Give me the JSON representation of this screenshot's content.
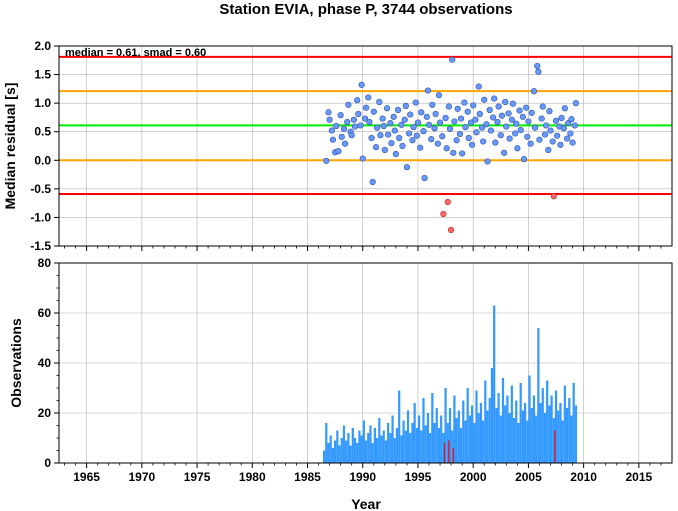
{
  "chart_data": [
    {
      "id": "residuals",
      "type": "scatter",
      "title": "Station EVIA, phase P, 3744 observations",
      "ylabel": "Median residual [s]",
      "annotation": "median = 0.61, smad = 0.60",
      "xlim": [
        1962.5,
        2018.0
      ],
      "ylim": [
        -1.5,
        2.0
      ],
      "y_ticks": [
        "2.0",
        "1.5",
        "1.0",
        "0.5",
        "0.0",
        "-0.5",
        "-1.0",
        "-1.5"
      ],
      "y_tick_values": [
        2.0,
        1.5,
        1.0,
        0.5,
        0.0,
        -0.5,
        -1.0,
        -1.5
      ],
      "grid": true,
      "reference_lines": [
        {
          "y": 1.81,
          "color": "#ff0000"
        },
        {
          "y": 1.21,
          "color": "#ffa500"
        },
        {
          "y": 0.61,
          "color": "#00ee00"
        },
        {
          "y": 0.0,
          "color": "#ffa500"
        },
        {
          "y": -0.59,
          "color": "#ff0000"
        }
      ],
      "colors": {
        "normal": "#6699ff",
        "outlier": "#ff6666"
      },
      "points": [
        [
          1986.7,
          -0.01
        ],
        [
          1986.9,
          0.84
        ],
        [
          1987.0,
          0.71
        ],
        [
          1987.2,
          0.52
        ],
        [
          1987.3,
          0.36
        ],
        [
          1987.5,
          0.14
        ],
        [
          1987.6,
          0.6
        ],
        [
          1987.8,
          0.16
        ],
        [
          1988.0,
          0.79
        ],
        [
          1988.1,
          0.41
        ],
        [
          1988.3,
          0.55
        ],
        [
          1988.4,
          0.29
        ],
        [
          1988.6,
          0.67
        ],
        [
          1988.7,
          0.97
        ],
        [
          1988.9,
          0.5
        ],
        [
          1989.0,
          0.44
        ],
        [
          1989.2,
          0.71
        ],
        [
          1989.3,
          0.59
        ],
        [
          1989.5,
          1.05
        ],
        [
          1989.6,
          0.81
        ],
        [
          1989.8,
          0.61
        ],
        [
          1989.9,
          1.32
        ],
        [
          1990.0,
          0.03
        ],
        [
          1990.2,
          0.73
        ],
        [
          1990.3,
          0.92
        ],
        [
          1990.5,
          1.1
        ],
        [
          1990.6,
          0.67
        ],
        [
          1990.8,
          0.39
        ],
        [
          1990.9,
          -0.38
        ],
        [
          1991.0,
          0.85
        ],
        [
          1991.2,
          0.23
        ],
        [
          1991.3,
          0.57
        ],
        [
          1991.5,
          1.02
        ],
        [
          1991.6,
          0.44
        ],
        [
          1991.8,
          0.73
        ],
        [
          1991.9,
          0.6
        ],
        [
          1992.0,
          0.18
        ],
        [
          1992.2,
          0.91
        ],
        [
          1992.3,
          0.45
        ],
        [
          1992.5,
          0.65
        ],
        [
          1992.6,
          0.3
        ],
        [
          1992.8,
          0.76
        ],
        [
          1992.9,
          0.52
        ],
        [
          1993.0,
          0.11
        ],
        [
          1993.2,
          0.88
        ],
        [
          1993.3,
          0.39
        ],
        [
          1993.5,
          0.62
        ],
        [
          1993.6,
          0.25
        ],
        [
          1993.8,
          0.71
        ],
        [
          1993.9,
          0.95
        ],
        [
          1994.0,
          -0.12
        ],
        [
          1994.2,
          0.47
        ],
        [
          1994.3,
          0.8
        ],
        [
          1994.5,
          0.35
        ],
        [
          1994.6,
          0.58
        ],
        [
          1994.8,
          1.01
        ],
        [
          1994.9,
          0.43
        ],
        [
          1995.0,
          0.66
        ],
        [
          1995.2,
          0.22
        ],
        [
          1995.3,
          0.84
        ],
        [
          1995.5,
          0.51
        ],
        [
          1995.6,
          -0.31
        ],
        [
          1995.8,
          0.76
        ],
        [
          1995.9,
          1.22
        ],
        [
          1996.0,
          0.62
        ],
        [
          1996.2,
          0.37
        ],
        [
          1996.3,
          0.97
        ],
        [
          1996.5,
          0.56
        ],
        [
          1996.6,
          0.81
        ],
        [
          1996.8,
          0.29
        ],
        [
          1996.9,
          1.14
        ],
        [
          1997.0,
          0.66
        ],
        [
          1997.2,
          0.42
        ],
        [
          1997.3,
          -0.94
        ],
        [
          1997.5,
          0.74
        ],
        [
          1997.6,
          0.21
        ],
        [
          1997.7,
          -0.73
        ],
        [
          1997.8,
          0.94
        ],
        [
          1997.9,
          0.55
        ],
        [
          1998.0,
          -1.22
        ],
        [
          1998.1,
          1.76
        ],
        [
          1998.2,
          0.13
        ],
        [
          1998.3,
          0.68
        ],
        [
          1998.5,
          0.35
        ],
        [
          1998.6,
          0.9
        ],
        [
          1998.8,
          0.46
        ],
        [
          1998.9,
          0.73
        ],
        [
          1999.0,
          0.12
        ],
        [
          1999.2,
          1.01
        ],
        [
          1999.3,
          0.58
        ],
        [
          1999.5,
          0.85
        ],
        [
          1999.6,
          0.39
        ],
        [
          1999.8,
          0.66
        ],
        [
          1999.9,
          0.27
        ],
        [
          2000.0,
          0.96
        ],
        [
          2000.2,
          0.71
        ],
        [
          2000.3,
          0.49
        ],
        [
          2000.5,
          1.29
        ],
        [
          2000.6,
          0.81
        ],
        [
          2000.8,
          0.57
        ],
        [
          2000.9,
          0.33
        ],
        [
          2001.0,
          1.06
        ],
        [
          2001.2,
          0.63
        ],
        [
          2001.3,
          -0.02
        ],
        [
          2001.5,
          0.88
        ],
        [
          2001.6,
          0.52
        ],
        [
          2001.8,
          0.75
        ],
        [
          2001.9,
          1.08
        ],
        [
          2002.0,
          0.31
        ],
        [
          2002.2,
          0.67
        ],
        [
          2002.3,
          0.94
        ],
        [
          2002.5,
          0.44
        ],
        [
          2002.6,
          0.78
        ],
        [
          2002.8,
          0.13
        ],
        [
          2002.9,
          1.02
        ],
        [
          2003.0,
          0.59
        ],
        [
          2003.2,
          0.82
        ],
        [
          2003.3,
          0.38
        ],
        [
          2003.5,
          0.71
        ],
        [
          2003.6,
          0.99
        ],
        [
          2003.8,
          0.47
        ],
        [
          2003.9,
          0.64
        ],
        [
          2004.0,
          0.21
        ],
        [
          2004.2,
          0.87
        ],
        [
          2004.3,
          0.53
        ],
        [
          2004.5,
          0.76
        ],
        [
          2004.6,
          0.02
        ],
        [
          2004.8,
          0.92
        ],
        [
          2004.9,
          0.41
        ],
        [
          2005.0,
          0.68
        ],
        [
          2005.2,
          0.29
        ],
        [
          2005.3,
          0.83
        ],
        [
          2005.5,
          1.21
        ],
        [
          2005.6,
          0.57
        ],
        [
          2005.8,
          1.65
        ],
        [
          2005.9,
          1.55
        ],
        [
          2006.0,
          0.36
        ],
        [
          2006.2,
          0.73
        ],
        [
          2006.3,
          0.94
        ],
        [
          2006.5,
          0.45
        ],
        [
          2006.6,
          0.61
        ],
        [
          2006.8,
          0.18
        ],
        [
          2006.9,
          0.86
        ],
        [
          2007.0,
          0.52
        ],
        [
          2007.2,
          0.33
        ],
        [
          2007.3,
          -0.63
        ],
        [
          2007.5,
          0.69
        ],
        [
          2007.6,
          0.43
        ],
        [
          2007.8,
          0.59
        ],
        [
          2007.9,
          0.27
        ],
        [
          2008.0,
          0.74
        ],
        [
          2008.2,
          0.56
        ],
        [
          2008.3,
          0.91
        ],
        [
          2008.5,
          0.38
        ],
        [
          2008.6,
          0.65
        ],
        [
          2008.8,
          0.47
        ],
        [
          2008.9,
          0.72
        ],
        [
          2009.0,
          0.31
        ],
        [
          2009.2,
          0.61
        ],
        [
          2009.3,
          1.0
        ]
      ]
    },
    {
      "id": "observations",
      "type": "bar",
      "xlabel": "Year",
      "ylabel": "Observations",
      "xlim": [
        1962.5,
        2018.0
      ],
      "ylim": [
        0,
        80
      ],
      "x_ticks": [
        "1965",
        "1970",
        "1975",
        "1980",
        "1985",
        "1990",
        "1995",
        "2000",
        "2005",
        "2010",
        "2015"
      ],
      "x_tick_values": [
        1965,
        1970,
        1975,
        1980,
        1985,
        1990,
        1995,
        2000,
        2005,
        2010,
        2015
      ],
      "y_ticks": [
        "0",
        "20",
        "40",
        "60",
        "80"
      ],
      "y_tick_values": [
        0,
        20,
        40,
        60,
        80
      ],
      "grid": true,
      "colors": {
        "bars": "#3399ff",
        "outlier": "#ff0000"
      },
      "bars": [
        [
          1986.5,
          5
        ],
        [
          1986.7,
          16
        ],
        [
          1986.9,
          8
        ],
        [
          1987.1,
          11
        ],
        [
          1987.3,
          6
        ],
        [
          1987.5,
          9
        ],
        [
          1987.7,
          13
        ],
        [
          1987.9,
          7
        ],
        [
          1988.1,
          10
        ],
        [
          1988.3,
          15
        ],
        [
          1988.5,
          9
        ],
        [
          1988.7,
          12
        ],
        [
          1988.9,
          7
        ],
        [
          1989.1,
          14
        ],
        [
          1989.3,
          10
        ],
        [
          1989.5,
          8
        ],
        [
          1989.7,
          13
        ],
        [
          1989.9,
          11
        ],
        [
          1990.1,
          17
        ],
        [
          1990.3,
          9
        ],
        [
          1990.5,
          12
        ],
        [
          1990.7,
          15
        ],
        [
          1990.9,
          8
        ],
        [
          1991.1,
          14
        ],
        [
          1991.3,
          10
        ],
        [
          1991.5,
          18
        ],
        [
          1991.7,
          11
        ],
        [
          1991.9,
          13
        ],
        [
          1992.1,
          9
        ],
        [
          1992.3,
          16
        ],
        [
          1992.5,
          12
        ],
        [
          1992.7,
          19
        ],
        [
          1992.9,
          10
        ],
        [
          1993.1,
          14
        ],
        [
          1993.3,
          29
        ],
        [
          1993.5,
          11
        ],
        [
          1993.7,
          17
        ],
        [
          1993.9,
          13
        ],
        [
          1994.1,
          21
        ],
        [
          1994.3,
          12
        ],
        [
          1994.5,
          16
        ],
        [
          1994.7,
          24
        ],
        [
          1994.9,
          14
        ],
        [
          1995.1,
          19
        ],
        [
          1995.3,
          13
        ],
        [
          1995.5,
          26
        ],
        [
          1995.7,
          15
        ],
        [
          1995.9,
          20
        ],
        [
          1996.1,
          12
        ],
        [
          1996.3,
          28
        ],
        [
          1996.5,
          16
        ],
        [
          1996.7,
          22
        ],
        [
          1996.9,
          14
        ],
        [
          1997.1,
          19
        ],
        [
          1997.3,
          12
        ],
        [
          1997.5,
          30
        ],
        [
          1997.7,
          16
        ],
        [
          1997.9,
          22
        ],
        [
          1998.1,
          13
        ],
        [
          1998.3,
          27
        ],
        [
          1998.5,
          18
        ],
        [
          1998.7,
          21
        ],
        [
          1998.9,
          14
        ],
        [
          1999.1,
          25
        ],
        [
          1999.3,
          17
        ],
        [
          1999.5,
          30
        ],
        [
          1999.7,
          19
        ],
        [
          1999.9,
          23
        ],
        [
          2000.1,
          16
        ],
        [
          2000.3,
          29
        ],
        [
          2000.5,
          20
        ],
        [
          2000.7,
          24
        ],
        [
          2000.9,
          17
        ],
        [
          2001.1,
          33
        ],
        [
          2001.3,
          21
        ],
        [
          2001.5,
          26
        ],
        [
          2001.7,
          38
        ],
        [
          2001.9,
          63
        ],
        [
          2002.1,
          22
        ],
        [
          2002.3,
          28
        ],
        [
          2002.5,
          19
        ],
        [
          2002.7,
          34
        ],
        [
          2002.9,
          23
        ],
        [
          2003.1,
          27
        ],
        [
          2003.3,
          20
        ],
        [
          2003.5,
          31
        ],
        [
          2003.7,
          18
        ],
        [
          2003.9,
          25
        ],
        [
          2004.1,
          16
        ],
        [
          2004.3,
          32
        ],
        [
          2004.5,
          21
        ],
        [
          2004.7,
          24
        ],
        [
          2004.9,
          17
        ],
        [
          2005.1,
          35
        ],
        [
          2005.3,
          22
        ],
        [
          2005.5,
          27
        ],
        [
          2005.7,
          19
        ],
        [
          2005.9,
          54
        ],
        [
          2006.1,
          24
        ],
        [
          2006.3,
          30
        ],
        [
          2006.5,
          20
        ],
        [
          2006.7,
          33
        ],
        [
          2006.9,
          23
        ],
        [
          2007.1,
          27
        ],
        [
          2007.3,
          18
        ],
        [
          2007.5,
          29
        ],
        [
          2007.7,
          21
        ],
        [
          2007.9,
          24
        ],
        [
          2008.1,
          17
        ],
        [
          2008.3,
          31
        ],
        [
          2008.5,
          22
        ],
        [
          2008.7,
          26
        ],
        [
          2008.9,
          19
        ],
        [
          2009.1,
          32
        ],
        [
          2009.3,
          23
        ]
      ],
      "outlier_bars": [
        [
          1997.4,
          8
        ],
        [
          1997.8,
          9
        ],
        [
          1998.2,
          6
        ],
        [
          2007.4,
          13
        ]
      ]
    }
  ]
}
